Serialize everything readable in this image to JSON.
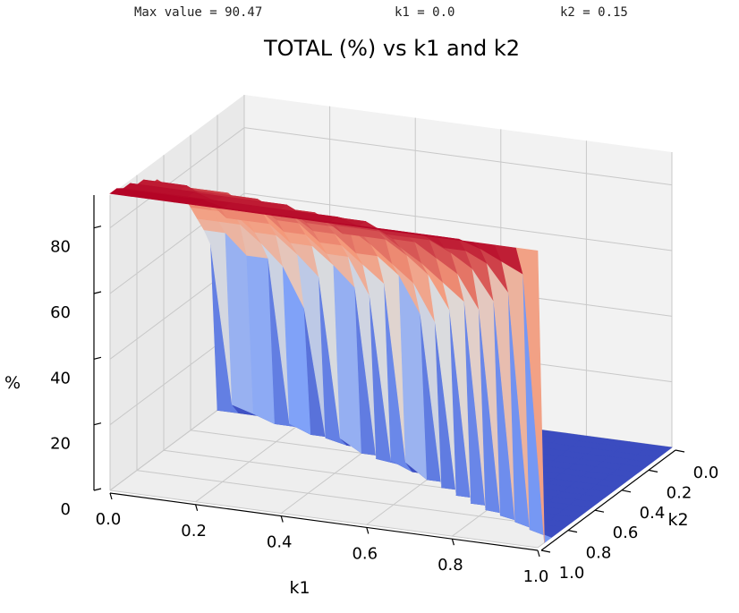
{
  "header": {
    "max_text": "Max value = 90.47",
    "k1_text": "k1 = 0.0",
    "k2_text": "k2 = 0.15"
  },
  "chart_data": {
    "type": "surface3d",
    "title": "TOTAL (%) vs k1 and k2",
    "xlabel": "k1",
    "ylabel": "k2",
    "zlabel": "%",
    "xlim": [
      0.0,
      1.0
    ],
    "ylim": [
      0.0,
      1.0
    ],
    "zlim": [
      0,
      90
    ],
    "x_ticks": [
      "0.0",
      "0.2",
      "0.4",
      "0.6",
      "0.8",
      "1.0"
    ],
    "y_ticks": [
      "0.0",
      "0.2",
      "0.4",
      "0.6",
      "0.8",
      "1.0"
    ],
    "z_ticks": [
      "0",
      "20",
      "40",
      "60",
      "80"
    ],
    "grid": true,
    "colormap": "coolwarm",
    "max_value": 90.47,
    "k1_grid": [
      0.0,
      0.05,
      0.1,
      0.15,
      0.2,
      0.25,
      0.3,
      0.35,
      0.4,
      0.45,
      0.5,
      0.55,
      0.6,
      0.65,
      0.7,
      0.75,
      0.8,
      0.85,
      0.9,
      0.95,
      1.0
    ],
    "k2_grid": [
      0.0,
      0.05,
      0.1,
      0.15,
      0.2,
      0.25,
      0.3,
      0.35,
      0.4,
      0.45,
      0.5,
      0.55,
      0.6,
      0.65,
      0.7,
      0.75,
      0.8,
      0.85,
      0.9,
      0.95,
      1.0
    ],
    "k2_at_max": [
      0.0,
      0.15
    ],
    "k2_breakdown_at_k1_0": 0.8,
    "k2_breakdown_at_k1_1": 0.05,
    "surface_levels": [
      5,
      11,
      22,
      40,
      52,
      58,
      63,
      68,
      73,
      77,
      81,
      84,
      87,
      89,
      90.47
    ]
  }
}
